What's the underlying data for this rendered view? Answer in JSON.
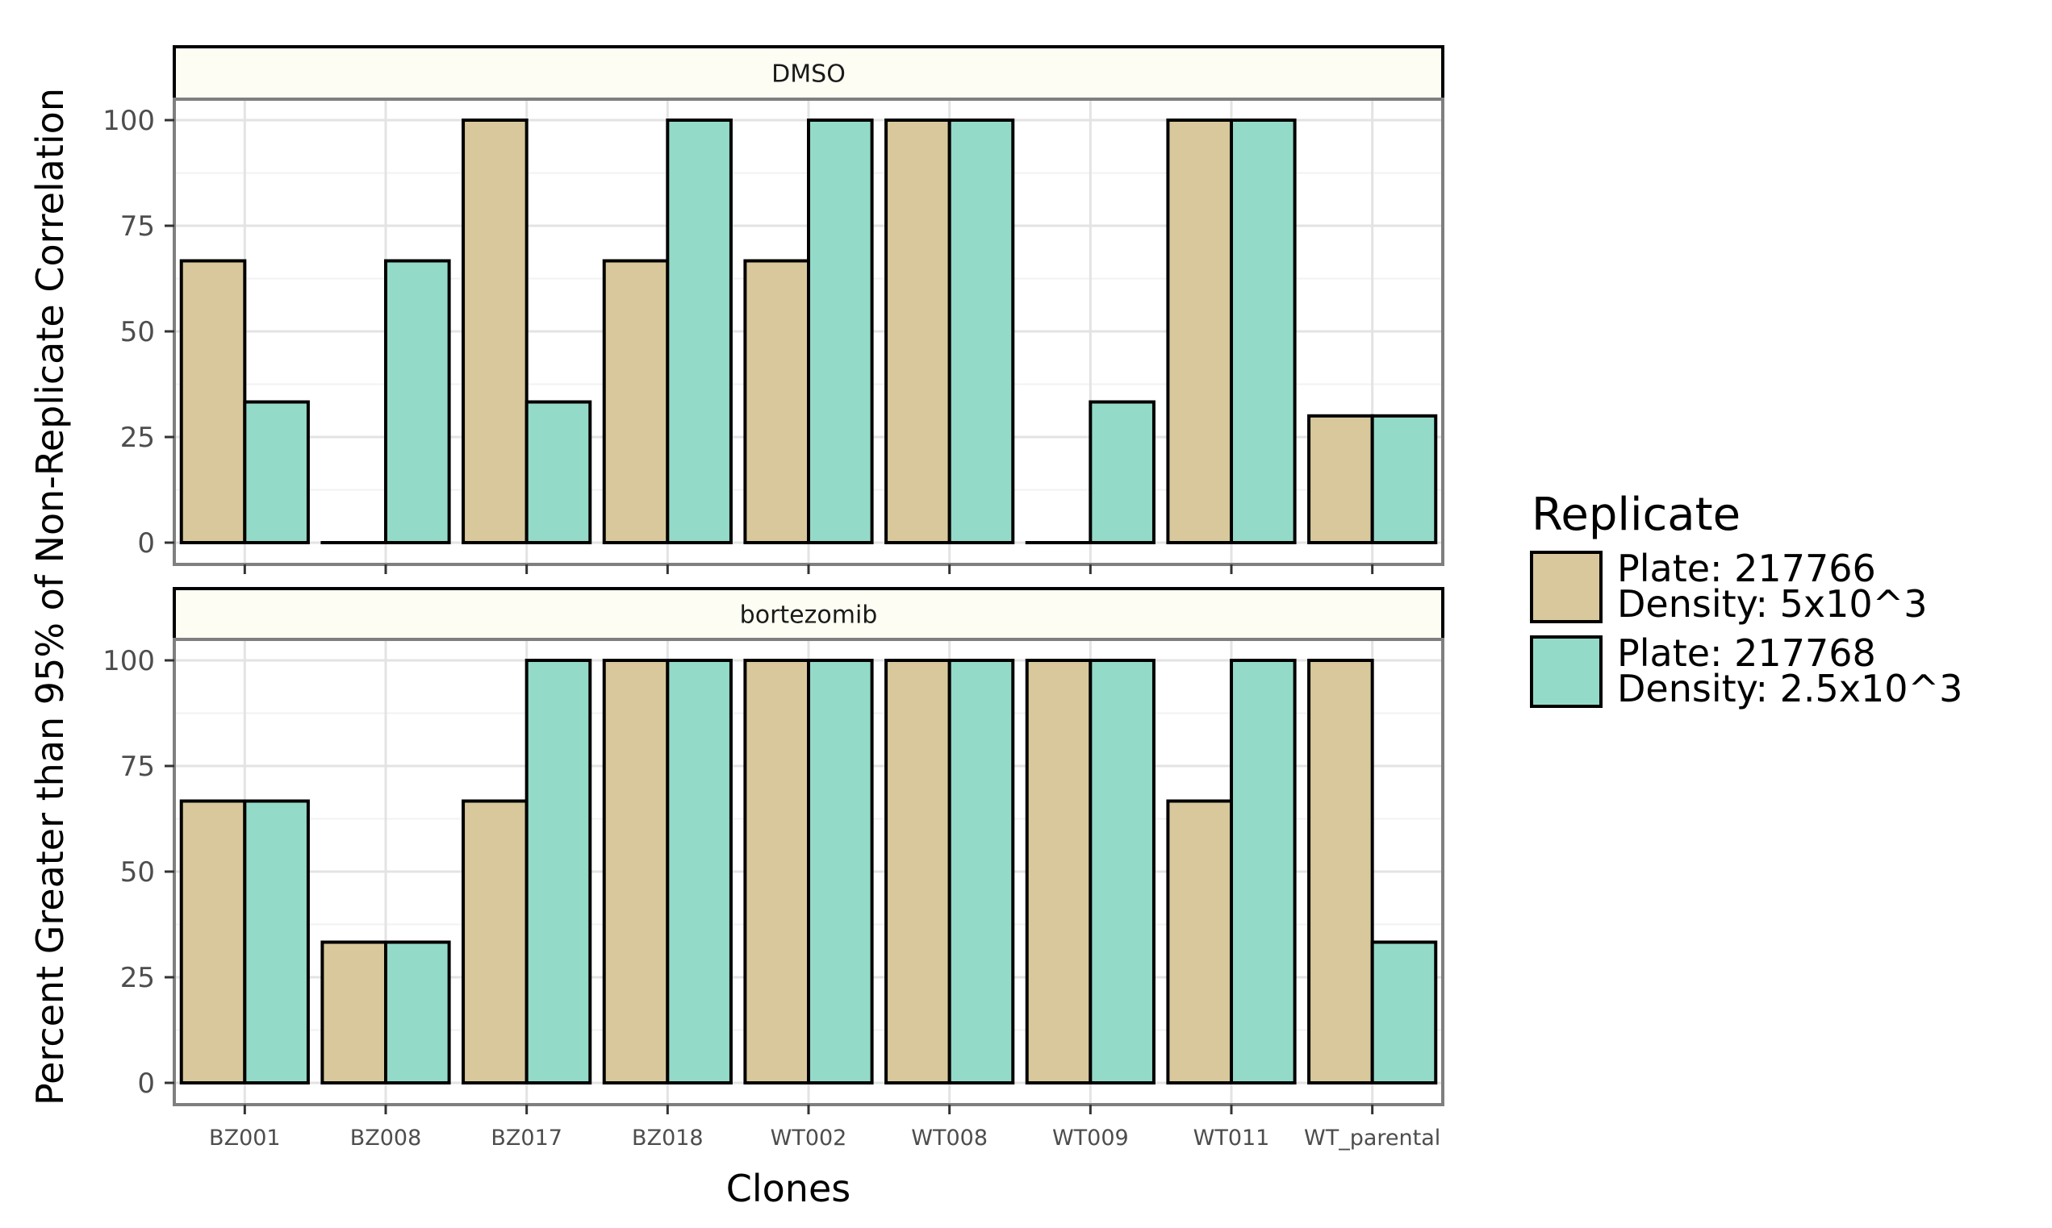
{
  "chart_data": {
    "type": "bar",
    "xlabel": "Clones",
    "ylabel": "Percent Greater than 95% of Non-Replicate Correlation",
    "categories": [
      "BZ001",
      "BZ008",
      "BZ017",
      "BZ018",
      "WT002",
      "WT008",
      "WT009",
      "WT011",
      "WT_parental"
    ],
    "yticks": [
      "0",
      "25",
      "50",
      "75",
      "100"
    ],
    "ylim": [
      0,
      100
    ],
    "grid": true,
    "legend_position": "right",
    "legend": {
      "title": "Replicate",
      "entries": [
        {
          "line1": "Plate: 217766",
          "line2": "Density: 5x10^3",
          "color": "#d8c89b"
        },
        {
          "line1": "Plate: 217768",
          "line2": "Density: 2.5x10^3",
          "color": "#94dac9"
        }
      ]
    },
    "facets": [
      {
        "label": "DMSO",
        "series": [
          {
            "values": [
              66.7,
              0,
              100,
              66.7,
              66.7,
              100,
              0,
              100,
              30
            ]
          },
          {
            "values": [
              33.3,
              66.7,
              33.3,
              100,
              100,
              100,
              33.3,
              100,
              30
            ]
          }
        ]
      },
      {
        "label": "bortezomib",
        "series": [
          {
            "values": [
              66.7,
              33.3,
              66.7,
              100,
              100,
              100,
              100,
              66.7,
              100
            ]
          },
          {
            "values": [
              66.7,
              33.3,
              100,
              100,
              100,
              100,
              100,
              100,
              33.3
            ]
          }
        ]
      }
    ]
  }
}
